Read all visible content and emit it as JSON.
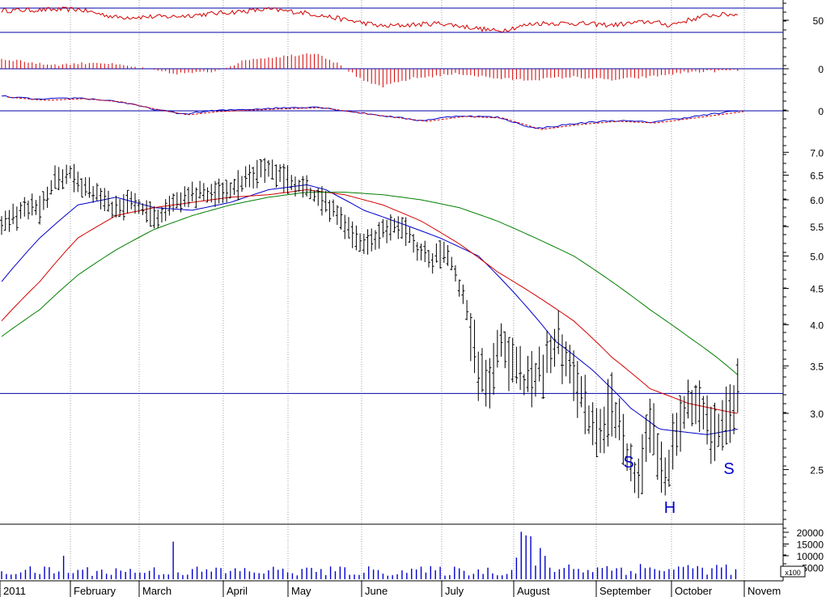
{
  "chart_data": {
    "type": "line",
    "price_axis": {
      "scale": "log",
      "ticks": [
        "7.0",
        "6.5",
        "6.0",
        "5.5",
        "5.0",
        "4.5",
        "4.0",
        "3.5",
        "3.0",
        "2.5"
      ]
    },
    "x_labels": [
      "2011",
      "February",
      "March",
      "April",
      "May",
      "June",
      "July",
      "August",
      "September",
      "October",
      "Novem"
    ],
    "resistance_level": 3.2,
    "pattern_labels": [
      "S",
      "H",
      "S"
    ],
    "price_points": [
      {
        "d": 0,
        "p": 5.55
      },
      {
        "d": 8,
        "p": 5.7
      },
      {
        "d": 14,
        "p": 5.9
      },
      {
        "d": 20,
        "p": 5.8
      },
      {
        "d": 28,
        "p": 6.45
      },
      {
        "d": 36,
        "p": 6.55
      },
      {
        "d": 44,
        "p": 6.2
      },
      {
        "d": 52,
        "p": 6.05
      },
      {
        "d": 60,
        "p": 5.8
      },
      {
        "d": 68,
        "p": 5.95
      },
      {
        "d": 76,
        "p": 5.75
      },
      {
        "d": 82,
        "p": 5.6
      },
      {
        "d": 90,
        "p": 6.0
      },
      {
        "d": 98,
        "p": 6.1
      },
      {
        "d": 106,
        "p": 6.15
      },
      {
        "d": 114,
        "p": 6.15
      },
      {
        "d": 122,
        "p": 6.25
      },
      {
        "d": 128,
        "p": 6.4
      },
      {
        "d": 136,
        "p": 6.55
      },
      {
        "d": 142,
        "p": 6.6
      },
      {
        "d": 148,
        "p": 6.45
      },
      {
        "d": 154,
        "p": 6.35
      },
      {
        "d": 160,
        "p": 6.2
      },
      {
        "d": 166,
        "p": 6.05
      },
      {
        "d": 172,
        "p": 5.85
      },
      {
        "d": 178,
        "p": 5.6
      },
      {
        "d": 184,
        "p": 5.35
      },
      {
        "d": 190,
        "p": 5.15
      },
      {
        "d": 196,
        "p": 5.3
      },
      {
        "d": 202,
        "p": 5.45
      },
      {
        "d": 208,
        "p": 5.55
      },
      {
        "d": 214,
        "p": 5.35
      },
      {
        "d": 220,
        "p": 5.05
      },
      {
        "d": 226,
        "p": 4.95
      },
      {
        "d": 232,
        "p": 5.05
      },
      {
        "d": 238,
        "p": 4.75
      },
      {
        "d": 244,
        "p": 4.2
      },
      {
        "d": 250,
        "p": 3.5
      },
      {
        "d": 256,
        "p": 3.35
      },
      {
        "d": 262,
        "p": 3.75
      },
      {
        "d": 268,
        "p": 3.5
      },
      {
        "d": 274,
        "p": 3.3
      },
      {
        "d": 280,
        "p": 3.4
      },
      {
        "d": 286,
        "p": 3.55
      },
      {
        "d": 292,
        "p": 3.8
      },
      {
        "d": 298,
        "p": 3.45
      },
      {
        "d": 304,
        "p": 3.2
      },
      {
        "d": 310,
        "p": 2.85
      },
      {
        "d": 316,
        "p": 2.95
      },
      {
        "d": 320,
        "p": 3.1
      },
      {
        "d": 326,
        "p": 2.75
      },
      {
        "d": 332,
        "p": 2.4
      },
      {
        "d": 336,
        "p": 2.55
      },
      {
        "d": 340,
        "p": 2.95
      },
      {
        "d": 344,
        "p": 2.65
      },
      {
        "d": 348,
        "p": 2.4
      },
      {
        "d": 352,
        "p": 2.7
      },
      {
        "d": 356,
        "p": 2.9
      },
      {
        "d": 360,
        "p": 3.05
      },
      {
        "d": 364,
        "p": 3.15
      },
      {
        "d": 368,
        "p": 2.95
      },
      {
        "d": 372,
        "p": 2.85
      },
      {
        "d": 376,
        "p": 2.8
      },
      {
        "d": 380,
        "p": 2.95
      },
      {
        "d": 384,
        "p": 3.15
      },
      {
        "d": 386,
        "p": 3.25
      }
    ],
    "series": [
      {
        "points": [
          {
            "d": 0,
            "p": 4.6
          },
          {
            "d": 20,
            "p": 5.3
          },
          {
            "d": 40,
            "p": 5.9
          },
          {
            "d": 60,
            "p": 6.05
          },
          {
            "d": 80,
            "p": 5.85
          },
          {
            "d": 100,
            "p": 5.8
          },
          {
            "d": 120,
            "p": 5.95
          },
          {
            "d": 140,
            "p": 6.2
          },
          {
            "d": 160,
            "p": 6.3
          },
          {
            "d": 170,
            "p": 6.2
          },
          {
            "d": 190,
            "p": 5.8
          },
          {
            "d": 210,
            "p": 5.55
          },
          {
            "d": 230,
            "p": 5.3
          },
          {
            "d": 250,
            "p": 5.0
          },
          {
            "d": 270,
            "p": 4.4
          },
          {
            "d": 290,
            "p": 3.8
          },
          {
            "d": 310,
            "p": 3.45
          },
          {
            "d": 330,
            "p": 3.05
          },
          {
            "d": 345,
            "p": 2.85
          },
          {
            "d": 360,
            "p": 2.82
          },
          {
            "d": 370,
            "p": 2.8
          },
          {
            "d": 386,
            "p": 2.85
          }
        ]
      },
      {
        "points": [
          {
            "d": 0,
            "p": 4.05
          },
          {
            "d": 20,
            "p": 4.6
          },
          {
            "d": 40,
            "p": 5.3
          },
          {
            "d": 60,
            "p": 5.7
          },
          {
            "d": 80,
            "p": 5.85
          },
          {
            "d": 100,
            "p": 5.95
          },
          {
            "d": 120,
            "p": 6.05
          },
          {
            "d": 140,
            "p": 6.1
          },
          {
            "d": 160,
            "p": 6.2
          },
          {
            "d": 180,
            "p": 6.1
          },
          {
            "d": 200,
            "p": 5.9
          },
          {
            "d": 220,
            "p": 5.6
          },
          {
            "d": 240,
            "p": 5.2
          },
          {
            "d": 260,
            "p": 4.75
          },
          {
            "d": 280,
            "p": 4.4
          },
          {
            "d": 300,
            "p": 4.05
          },
          {
            "d": 320,
            "p": 3.6
          },
          {
            "d": 340,
            "p": 3.25
          },
          {
            "d": 360,
            "p": 3.1
          },
          {
            "d": 380,
            "p": 3.02
          },
          {
            "d": 386,
            "p": 3.0
          }
        ]
      },
      {
        "points": [
          {
            "d": 0,
            "p": 3.85
          },
          {
            "d": 20,
            "p": 4.2
          },
          {
            "d": 40,
            "p": 4.7
          },
          {
            "d": 60,
            "p": 5.1
          },
          {
            "d": 80,
            "p": 5.45
          },
          {
            "d": 100,
            "p": 5.7
          },
          {
            "d": 120,
            "p": 5.9
          },
          {
            "d": 140,
            "p": 6.05
          },
          {
            "d": 160,
            "p": 6.15
          },
          {
            "d": 180,
            "p": 6.15
          },
          {
            "d": 200,
            "p": 6.1
          },
          {
            "d": 220,
            "p": 6.0
          },
          {
            "d": 240,
            "p": 5.85
          },
          {
            "d": 260,
            "p": 5.6
          },
          {
            "d": 280,
            "p": 5.3
          },
          {
            "d": 300,
            "p": 5.0
          },
          {
            "d": 320,
            "p": 4.6
          },
          {
            "d": 340,
            "p": 4.2
          },
          {
            "d": 360,
            "p": 3.85
          },
          {
            "d": 375,
            "p": 3.6
          },
          {
            "d": 386,
            "p": 3.4
          }
        ]
      }
    ],
    "rsi_panel": {
      "tick": "50",
      "levels": [
        70,
        30
      ]
    },
    "histogram_panel": {
      "tick": "0"
    },
    "macd_panel": {
      "tick": "0"
    },
    "volume_panel": {
      "ticks": [
        "20000",
        "15000",
        "10000",
        "5000"
      ],
      "multiplier_label": "x100"
    }
  },
  "colors": {
    "price_bars": "#000000",
    "ma_short": "#0000cc",
    "ma_mid": "#d40000",
    "ma_long": "#008000",
    "rsi": "#d40000",
    "histogram": "#d40000",
    "volume": "#0000cc",
    "pattern_label": "#0000cc",
    "level_line": "#0000aa"
  }
}
